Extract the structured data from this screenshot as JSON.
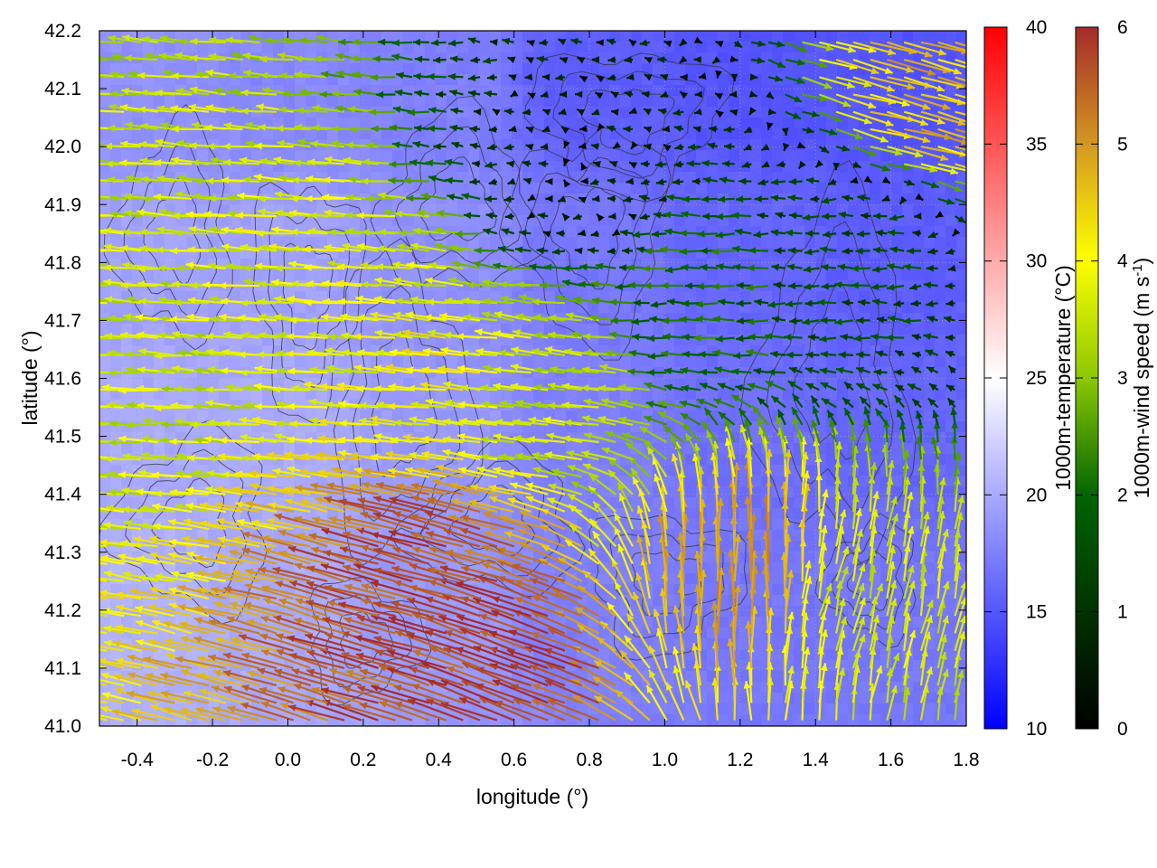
{
  "chart_data": {
    "type": "heatmap",
    "subtype": "map-with-wind-vectors-and-contours",
    "xlabel": "longitude (°)",
    "ylabel": "latitude (°)",
    "xlim": [
      -0.5,
      1.8
    ],
    "ylim": [
      41.0,
      42.2
    ],
    "x_ticks": [
      "-0.4",
      "-0.2",
      "0.0",
      "0.2",
      "0.4",
      "0.6",
      "0.8",
      "1.0",
      "1.2",
      "1.4",
      "1.6",
      "1.8"
    ],
    "x_tick_values": [
      -0.4,
      -0.2,
      0.0,
      0.2,
      0.4,
      0.6,
      0.8,
      1.0,
      1.2,
      1.4,
      1.6,
      1.8
    ],
    "y_ticks": [
      "41.0",
      "41.1",
      "41.2",
      "41.3",
      "41.4",
      "41.5",
      "41.6",
      "41.7",
      "41.8",
      "41.9",
      "42.0",
      "42.1",
      "42.2"
    ],
    "y_tick_values": [
      41.0,
      41.1,
      41.2,
      41.3,
      41.4,
      41.5,
      41.6,
      41.7,
      41.8,
      41.9,
      42.0,
      42.1,
      42.2
    ],
    "grid": true,
    "temperature_colorbar": {
      "label": "1000m-temperature (°C)",
      "range": [
        10,
        40
      ],
      "ticks": [
        "10",
        "15",
        "20",
        "25",
        "30",
        "35",
        "40"
      ],
      "tick_values": [
        10,
        15,
        20,
        25,
        30,
        35,
        40
      ],
      "colors": [
        "#0000ff",
        "#ffffff",
        "#ff0000"
      ]
    },
    "wind_colorbar": {
      "label": "1000m-wind speed (m s",
      "label_sup": "-1",
      "label_end": ")",
      "range": [
        0,
        6
      ],
      "ticks": [
        "0",
        "1",
        "2",
        "3",
        "4",
        "5",
        "6"
      ],
      "tick_values": [
        0,
        1,
        2,
        3,
        4,
        5,
        6
      ],
      "colors": [
        "#000000",
        "#006400",
        "#8cc800",
        "#ffff00",
        "#d49a20",
        "#a52a2a"
      ]
    },
    "temperature_field": {
      "description_values": "approximate 1000m temperature (°C) at sample points",
      "points": [
        {
          "lon": -0.4,
          "lat": 42.1,
          "t": 18.5
        },
        {
          "lon": 0.0,
          "lat": 42.1,
          "t": 18.0
        },
        {
          "lon": 0.4,
          "lat": 42.1,
          "t": 17.5
        },
        {
          "lon": 0.8,
          "lat": 42.1,
          "t": 15.5
        },
        {
          "lon": 1.2,
          "lat": 42.1,
          "t": 15.0
        },
        {
          "lon": 1.6,
          "lat": 42.1,
          "t": 15.0
        },
        {
          "lon": -0.4,
          "lat": 41.8,
          "t": 19.5
        },
        {
          "lon": 0.0,
          "lat": 41.8,
          "t": 19.5
        },
        {
          "lon": 0.4,
          "lat": 41.8,
          "t": 18.5
        },
        {
          "lon": 0.8,
          "lat": 41.8,
          "t": 17.0
        },
        {
          "lon": 1.2,
          "lat": 41.8,
          "t": 16.0
        },
        {
          "lon": 1.6,
          "lat": 41.8,
          "t": 15.5
        },
        {
          "lon": -0.4,
          "lat": 41.5,
          "t": 20.0
        },
        {
          "lon": 0.0,
          "lat": 41.5,
          "t": 20.0
        },
        {
          "lon": 0.4,
          "lat": 41.5,
          "t": 19.0
        },
        {
          "lon": 0.8,
          "lat": 41.5,
          "t": 17.5
        },
        {
          "lon": 1.2,
          "lat": 41.5,
          "t": 16.5
        },
        {
          "lon": 1.6,
          "lat": 41.5,
          "t": 16.0
        },
        {
          "lon": -0.4,
          "lat": 41.2,
          "t": 20.5
        },
        {
          "lon": 0.0,
          "lat": 41.2,
          "t": 20.0
        },
        {
          "lon": 0.4,
          "lat": 41.2,
          "t": 19.0
        },
        {
          "lon": 0.8,
          "lat": 41.2,
          "t": 17.5
        },
        {
          "lon": 1.2,
          "lat": 41.2,
          "t": 17.0
        },
        {
          "lon": 1.6,
          "lat": 41.2,
          "t": 17.0
        }
      ]
    },
    "wind_field": {
      "description_values": "approximate wind vectors: u,v in m/s (east, north)",
      "points": [
        {
          "lon": -0.3,
          "lat": 41.65,
          "u": -3.5,
          "v": 0.2
        },
        {
          "lon": 0.1,
          "lat": 41.7,
          "u": -3.8,
          "v": 0.3
        },
        {
          "lon": 0.4,
          "lat": 41.6,
          "u": -4.0,
          "v": 0.4
        },
        {
          "lon": 0.7,
          "lat": 41.6,
          "u": -3.5,
          "v": 0.5
        },
        {
          "lon": 1.1,
          "lat": 41.75,
          "u": -2.0,
          "v": 0.0
        },
        {
          "lon": 1.5,
          "lat": 41.8,
          "u": -1.5,
          "v": 0.0
        },
        {
          "lon": 0.4,
          "lat": 41.25,
          "u": -5.5,
          "v": 1.5
        },
        {
          "lon": 0.6,
          "lat": 41.1,
          "u": -5.5,
          "v": 2.0
        },
        {
          "lon": 1.2,
          "lat": 41.25,
          "u": 0.0,
          "v": 5.0
        },
        {
          "lon": 1.5,
          "lat": 41.2,
          "u": 0.8,
          "v": 3.5
        },
        {
          "lon": 1.7,
          "lat": 42.1,
          "u": 4.5,
          "v": -1.2
        },
        {
          "lon": 0.8,
          "lat": 41.95,
          "u": -0.5,
          "v": 0.0
        }
      ]
    }
  }
}
